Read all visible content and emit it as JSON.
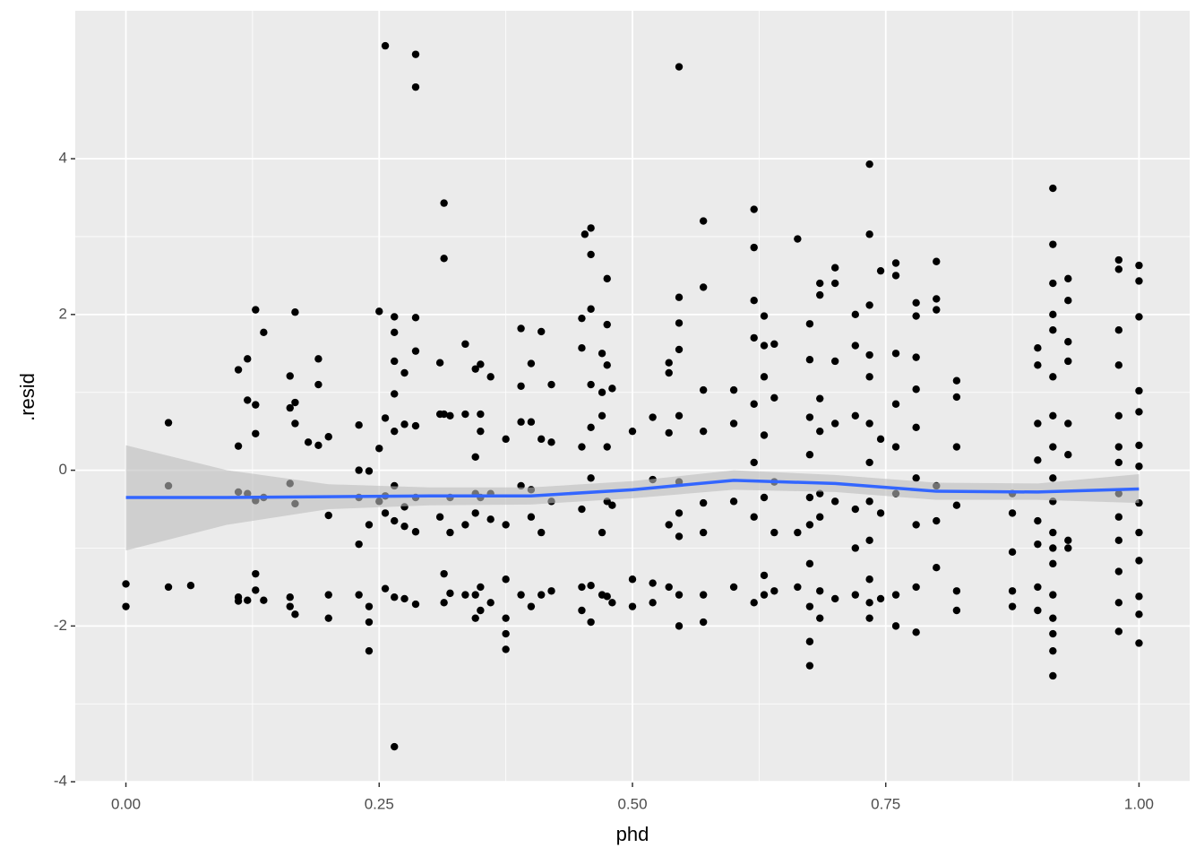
{
  "chart_data": {
    "type": "scatter",
    "x_label": "phd",
    "y_label": ".resid",
    "color": "#000000",
    "x": [
      0,
      0,
      0.042,
      0.042,
      0.042,
      0.064,
      0.111,
      0.111,
      0.111,
      0.111,
      0.111,
      0.12,
      0.12,
      0.12,
      0.12,
      0.128,
      0.128,
      0.128,
      0.128,
      0.128,
      0.128,
      0.136,
      0.136,
      0.136,
      0.162,
      0.162,
      0.162,
      0.162,
      0.162,
      0.167,
      0.167,
      0.167,
      0.167,
      0.167,
      0.18,
      0.19,
      0.19,
      0.19,
      0.2,
      0.2,
      0.2,
      0.2,
      0.23,
      0.23,
      0.23,
      0.23,
      0.23,
      0.24,
      0.24,
      0.24,
      0.24,
      0.24,
      0.25,
      0.25,
      0.25,
      0.256,
      0.256,
      0.256,
      0.256,
      0.256,
      0.265,
      0.265,
      0.265,
      0.265,
      0.265,
      0.265,
      0.265,
      0.265,
      0.265,
      0.275,
      0.275,
      0.275,
      0.275,
      0.275,
      0.286,
      0.286,
      0.286,
      0.286,
      0.286,
      0.286,
      0.286,
      0.286,
      0.31,
      0.31,
      0.31,
      0.314,
      0.314,
      0.314,
      0.314,
      0.314,
      0.32,
      0.32,
      0.32,
      0.32,
      0.335,
      0.335,
      0.335,
      0.335,
      0.345,
      0.345,
      0.345,
      0.345,
      0.345,
      0.345,
      0.35,
      0.35,
      0.35,
      0.35,
      0.35,
      0.35,
      0.36,
      0.36,
      0.36,
      0.36,
      0.375,
      0.375,
      0.375,
      0.375,
      0.375,
      0.375,
      0.39,
      0.39,
      0.39,
      0.39,
      0.39,
      0.4,
      0.4,
      0.4,
      0.4,
      0.4,
      0.41,
      0.41,
      0.41,
      0.41,
      0.42,
      0.42,
      0.42,
      0.42,
      0.45,
      0.45,
      0.45,
      0.45,
      0.45,
      0.45,
      0.453,
      0.459,
      0.459,
      0.459,
      0.459,
      0.459,
      0.459,
      0.459,
      0.459,
      0.47,
      0.47,
      0.47,
      0.47,
      0.47,
      0.475,
      0.475,
      0.475,
      0.475,
      0.475,
      0.475,
      0.48,
      0.48,
      0.48,
      0.5,
      0.5,
      0.5,
      0.52,
      0.52,
      0.52,
      0.52,
      0.536,
      0.536,
      0.536,
      0.536,
      0.536,
      0.546,
      0.546,
      0.546,
      0.546,
      0.546,
      0.546,
      0.546,
      0.546,
      0.546,
      0.546,
      0.57,
      0.57,
      0.57,
      0.57,
      0.57,
      0.57,
      0.57,
      0.57,
      0.6,
      0.6,
      0.6,
      0.6,
      0.62,
      0.62,
      0.62,
      0.62,
      0.62,
      0.62,
      0.62,
      0.62,
      0.63,
      0.63,
      0.63,
      0.63,
      0.63,
      0.63,
      0.63,
      0.64,
      0.64,
      0.64,
      0.64,
      0.64,
      0.663,
      0.663,
      0.663,
      0.675,
      0.675,
      0.675,
      0.675,
      0.675,
      0.675,
      0.675,
      0.675,
      0.675,
      0.675,
      0.685,
      0.685,
      0.685,
      0.685,
      0.685,
      0.685,
      0.685,
      0.685,
      0.7,
      0.7,
      0.7,
      0.7,
      0.7,
      0.7,
      0.72,
      0.72,
      0.72,
      0.72,
      0.72,
      0.72,
      0.734,
      0.734,
      0.734,
      0.734,
      0.734,
      0.734,
      0.734,
      0.734,
      0.734,
      0.734,
      0.734,
      0.734,
      0.745,
      0.745,
      0.745,
      0.745,
      0.76,
      0.76,
      0.76,
      0.76,
      0.76,
      0.76,
      0.76,
      0.76,
      0.78,
      0.78,
      0.78,
      0.78,
      0.78,
      0.78,
      0.78,
      0.78,
      0.78,
      0.8,
      0.8,
      0.8,
      0.8,
      0.8,
      0.8,
      0.82,
      0.82,
      0.82,
      0.82,
      0.82,
      0.82,
      0.875,
      0.875,
      0.875,
      0.875,
      0.875,
      0.9,
      0.9,
      0.9,
      0.9,
      0.9,
      0.9,
      0.9,
      0.9,
      0.915,
      0.915,
      0.915,
      0.915,
      0.915,
      0.915,
      0.915,
      0.915,
      0.915,
      0.915,
      0.915,
      0.915,
      0.915,
      0.915,
      0.915,
      0.915,
      0.915,
      0.915,
      0.93,
      0.93,
      0.93,
      0.93,
      0.93,
      0.93,
      0.93,
      0.93,
      0.98,
      0.98,
      0.98,
      0.98,
      0.98,
      0.98,
      0.98,
      0.98,
      0.98,
      0.98,
      0.98,
      0.98,
      0.98,
      1,
      1,
      1,
      1,
      1,
      1,
      1,
      1,
      1,
      1,
      1,
      1,
      1
    ],
    "values": [
      -1.46,
      -1.75,
      0.61,
      -0.2,
      -1.5,
      -1.48,
      1.29,
      0.31,
      -0.28,
      -1.63,
      -1.68,
      1.43,
      0.9,
      -0.3,
      -1.67,
      2.06,
      0.84,
      0.47,
      -0.39,
      -1.33,
      -1.54,
      1.77,
      -0.35,
      -1.67,
      1.21,
      0.8,
      -0.17,
      -1.63,
      -1.75,
      2.03,
      0.87,
      0.6,
      -0.43,
      -1.85,
      0.36,
      1.43,
      1.1,
      0.32,
      0.43,
      -0.58,
      -1.6,
      -1.9,
      0.58,
      0,
      -0.35,
      -0.95,
      -1.6,
      -0.01,
      -0.7,
      -1.75,
      -1.95,
      -2.32,
      2.04,
      0.28,
      -0.4,
      5.45,
      0.67,
      -0.33,
      -0.55,
      -1.52,
      1.97,
      1.77,
      1.4,
      0.98,
      0.5,
      -0.2,
      -0.65,
      -1.63,
      -3.55,
      1.25,
      0.59,
      -0.47,
      -0.72,
      -1.65,
      5.34,
      4.92,
      1.96,
      1.53,
      0.57,
      -0.35,
      -0.79,
      -1.72,
      1.38,
      0.72,
      -0.6,
      3.43,
      2.72,
      0.72,
      -1.33,
      -1.7,
      0.7,
      -0.35,
      -0.8,
      -1.58,
      1.62,
      0.72,
      -0.7,
      -1.6,
      1.3,
      0.17,
      -0.3,
      -0.55,
      -1.6,
      -1.9,
      1.36,
      0.72,
      0.5,
      -0.35,
      -1.5,
      -1.8,
      1.2,
      -0.3,
      -0.63,
      -1.7,
      0.4,
      -0.7,
      -1.4,
      -1.9,
      -2.1,
      -2.3,
      1.82,
      1.08,
      0.62,
      -0.2,
      -1.6,
      1.37,
      0.62,
      -0.25,
      -0.6,
      -1.75,
      1.78,
      0.4,
      -0.8,
      -1.6,
      1.1,
      0.36,
      -0.4,
      -1.55,
      1.95,
      1.57,
      0.3,
      -0.5,
      -1.5,
      -1.8,
      3.03,
      3.11,
      2.77,
      2.07,
      1.1,
      0.55,
      -0.1,
      -1.48,
      -1.95,
      1.5,
      1,
      0.7,
      -0.8,
      -1.6,
      2.46,
      1.87,
      1.35,
      0.3,
      -0.4,
      -1.62,
      1.05,
      -0.45,
      -1.7,
      0.5,
      -1.4,
      -1.75,
      0.68,
      -0.12,
      -1.45,
      -1.7,
      1.38,
      1.25,
      0.48,
      -0.7,
      -1.5,
      5.18,
      2.22,
      1.89,
      1.55,
      0.7,
      -0.15,
      -0.55,
      -0.85,
      -1.6,
      -2,
      3.2,
      2.35,
      1.03,
      0.5,
      -0.42,
      -0.8,
      -1.6,
      -1.95,
      1.03,
      0.6,
      -0.4,
      -1.5,
      3.35,
      2.86,
      2.18,
      1.7,
      0.85,
      0.1,
      -0.6,
      -1.7,
      1.98,
      1.6,
      1.2,
      0.45,
      -0.35,
      -1.35,
      -1.6,
      1.62,
      0.93,
      -0.15,
      -0.8,
      -1.55,
      2.97,
      -0.8,
      -1.5,
      1.88,
      1.42,
      0.68,
      0.2,
      -0.35,
      -0.7,
      -1.2,
      -1.75,
      -2.2,
      -2.51,
      2.4,
      2.25,
      0.92,
      0.5,
      -0.3,
      -0.6,
      -1.55,
      -1.9,
      2.6,
      2.4,
      1.4,
      0.6,
      -0.4,
      -1.65,
      2,
      1.6,
      0.7,
      -0.5,
      -1,
      -1.6,
      3.93,
      3.03,
      2.12,
      1.48,
      1.2,
      0.6,
      0.1,
      -0.4,
      -0.9,
      -1.4,
      -1.7,
      -1.9,
      2.56,
      0.4,
      -0.55,
      -1.65,
      2.66,
      2.5,
      1.5,
      0.85,
      0.3,
      -0.3,
      -1.6,
      -2,
      2.15,
      1.98,
      1.45,
      1.04,
      0.55,
      -0.1,
      -0.7,
      -1.5,
      -2.08,
      2.68,
      2.2,
      2.06,
      -0.2,
      -0.65,
      -1.25,
      1.15,
      0.94,
      0.3,
      -0.45,
      -1.55,
      -1.8,
      -0.3,
      -0.55,
      -1.05,
      -1.55,
      -1.75,
      1.57,
      1.35,
      0.6,
      0.13,
      -0.65,
      -0.95,
      -1.5,
      -1.8,
      3.62,
      2.9,
      2.4,
      2,
      1.8,
      1.2,
      0.7,
      0.3,
      -0.1,
      -0.4,
      -0.8,
      -1,
      -1.2,
      -1.6,
      -1.9,
      -2.1,
      -2.32,
      -2.64,
      2.46,
      2.18,
      1.65,
      1.4,
      0.6,
      0.2,
      -0.9,
      -1,
      2.7,
      2.58,
      1.8,
      1.35,
      0.7,
      0.3,
      0.1,
      -0.3,
      -0.6,
      -0.9,
      -1.3,
      -1.7,
      -2.07,
      2.63,
      2.43,
      1.97,
      1.02,
      0.75,
      0.32,
      0.05,
      -0.42,
      -0.8,
      -1.16,
      -1.62,
      -1.85,
      -2.22
    ],
    "smooth": {
      "color": "#3366ff",
      "band_color": "#bdbdbd",
      "x": [
        0,
        0.1,
        0.2,
        0.3,
        0.4,
        0.5,
        0.6,
        0.7,
        0.8,
        0.9,
        1
      ],
      "values": [
        -0.35,
        -0.35,
        -0.34,
        -0.33,
        -0.33,
        -0.25,
        -0.13,
        -0.17,
        -0.27,
        -0.28,
        -0.24
      ],
      "lower": [
        -1.03,
        -0.7,
        -0.5,
        -0.45,
        -0.44,
        -0.36,
        -0.25,
        -0.28,
        -0.38,
        -0.38,
        -0.42
      ],
      "upper": [
        0.32,
        0.0,
        -0.18,
        -0.22,
        -0.22,
        -0.14,
        0.0,
        -0.06,
        -0.16,
        -0.17,
        -0.05
      ]
    },
    "xlim": [
      -0.05,
      1.05
    ],
    "ylim": [
      -4.01,
      5.9
    ],
    "xticks": [
      {
        "value": 0,
        "label": "0.00"
      },
      {
        "value": 0.25,
        "label": "0.25"
      },
      {
        "value": 0.5,
        "label": "0.50"
      },
      {
        "value": 0.75,
        "label": "0.75"
      },
      {
        "value": 1,
        "label": "1.00"
      }
    ],
    "yticks": [
      -4,
      -2,
      0,
      2,
      4
    ],
    "grid": true
  }
}
